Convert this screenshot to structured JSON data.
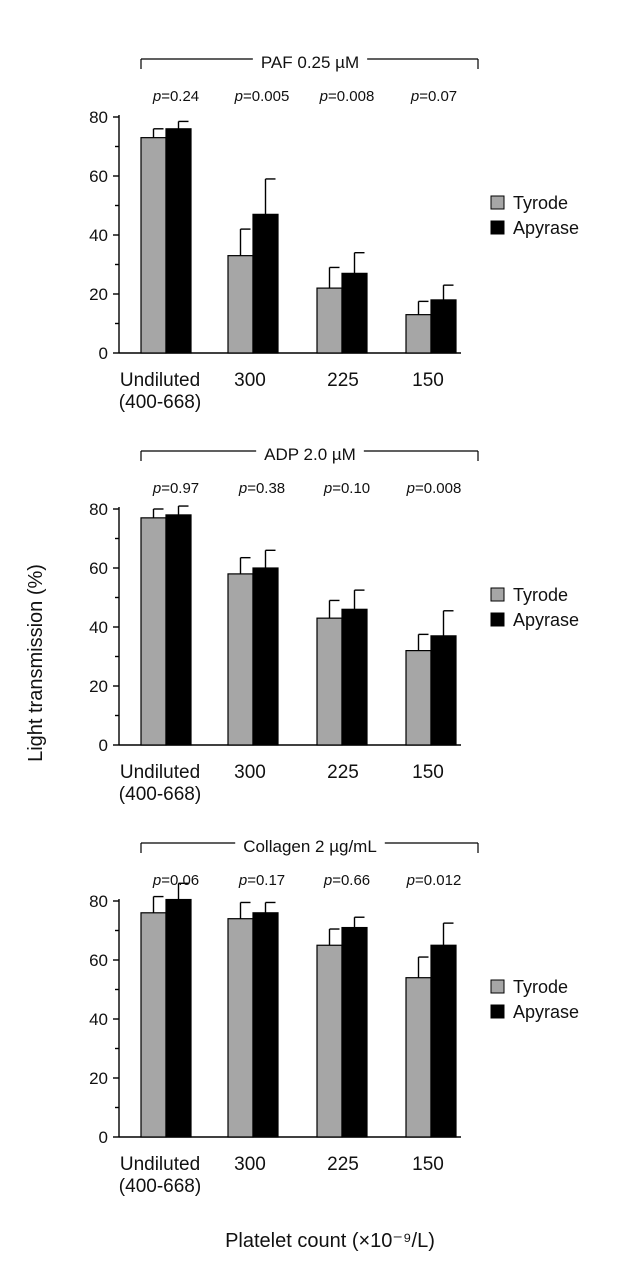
{
  "ylabel": "Light transmission (%)",
  "xlabel": "Platelet count (×10⁻⁹/L)",
  "colors": {
    "Tyrode": "#a6a6a6",
    "Apyrase": "#000000"
  },
  "chart_data": [
    {
      "type": "bar",
      "title": "PAF 0.25 µM",
      "categories": [
        "Undiluted",
        "300",
        "225",
        "150"
      ],
      "category_sublabels": [
        "(400-668)",
        "",
        "",
        ""
      ],
      "p_values": [
        "p=0.24",
        "p=0.005",
        "p=0.008",
        "p=0.07"
      ],
      "ylim": [
        0,
        80
      ],
      "yticks": [
        0,
        20,
        40,
        60,
        80
      ],
      "legend": [
        "Tyrode",
        "Apyrase"
      ],
      "legend_position": "right",
      "series": [
        {
          "name": "Tyrode",
          "values": [
            73,
            33,
            22,
            13
          ],
          "errors": [
            3,
            9,
            7,
            4.5
          ]
        },
        {
          "name": "Apyrase",
          "values": [
            76,
            47,
            27,
            18
          ],
          "errors": [
            2.5,
            12,
            7,
            5
          ]
        }
      ]
    },
    {
      "type": "bar",
      "title": "ADP 2.0 µM",
      "categories": [
        "Undiluted",
        "300",
        "225",
        "150"
      ],
      "category_sublabels": [
        "(400-668)",
        "",
        "",
        ""
      ],
      "p_values": [
        "p=0.97",
        "p=0.38",
        "p=0.10",
        "p=0.008"
      ],
      "ylim": [
        0,
        80
      ],
      "yticks": [
        0,
        20,
        40,
        60,
        80
      ],
      "legend": [
        "Tyrode",
        "Apyrase"
      ],
      "legend_position": "right",
      "series": [
        {
          "name": "Tyrode",
          "values": [
            77,
            58,
            43,
            32
          ],
          "errors": [
            3,
            5.5,
            6,
            5.5
          ]
        },
        {
          "name": "Apyrase",
          "values": [
            78,
            60,
            46,
            37
          ],
          "errors": [
            3,
            6,
            6.5,
            8.5
          ]
        }
      ]
    },
    {
      "type": "bar",
      "title": "Collagen 2 µg/mL",
      "categories": [
        "Undiluted",
        "300",
        "225",
        "150"
      ],
      "category_sublabels": [
        "(400-668)",
        "",
        "",
        ""
      ],
      "p_values": [
        "p=0.06",
        "p=0.17",
        "p=0.66",
        "p=0.012"
      ],
      "ylim": [
        0,
        80
      ],
      "yticks": [
        0,
        20,
        40,
        60,
        80
      ],
      "legend": [
        "Tyrode",
        "Apyrase"
      ],
      "legend_position": "right",
      "series": [
        {
          "name": "Tyrode",
          "values": [
            76,
            74,
            65,
            54
          ],
          "errors": [
            5.5,
            5.5,
            5.5,
            7
          ]
        },
        {
          "name": "Apyrase",
          "values": [
            80.5,
            76,
            71,
            65
          ],
          "errors": [
            5.5,
            3.5,
            3.5,
            7.5
          ]
        }
      ]
    }
  ]
}
